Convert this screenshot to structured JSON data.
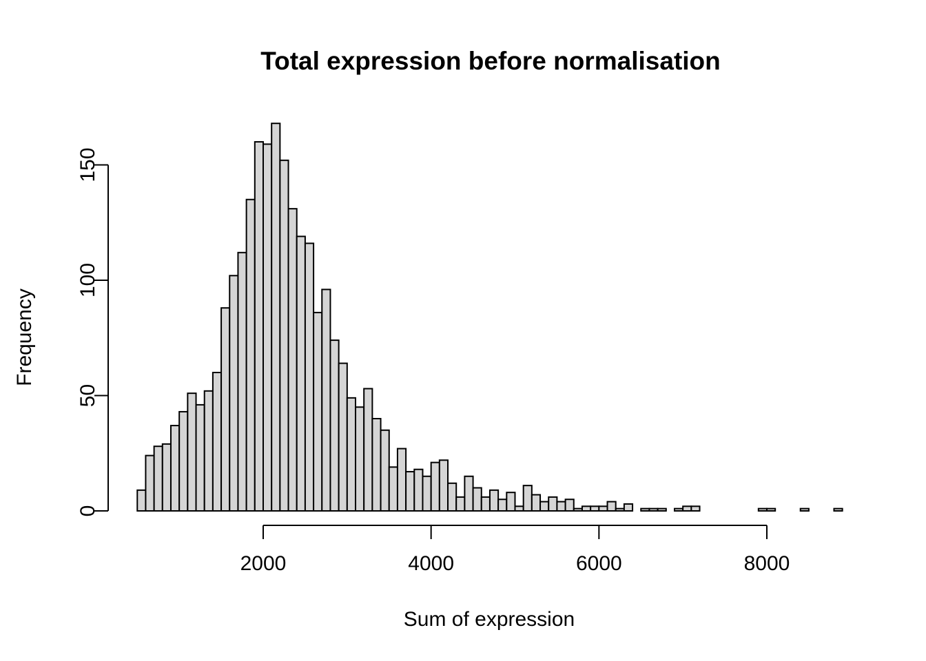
{
  "chart_data": {
    "type": "bar",
    "subtype": "histogram",
    "title": "Total expression before normalisation",
    "xlabel": "Sum of expression",
    "ylabel": "Frequency",
    "bin_width": 100,
    "first_bin_start": 500,
    "frequencies": [
      9,
      24,
      28,
      29,
      37,
      43,
      51,
      46,
      52,
      60,
      88,
      102,
      112,
      135,
      160,
      159,
      168,
      152,
      131,
      119,
      116,
      86,
      96,
      74,
      64,
      49,
      45,
      53,
      40,
      35,
      19,
      27,
      17,
      18,
      15,
      21,
      22,
      12,
      6,
      15,
      10,
      6,
      9,
      5,
      8,
      2,
      11,
      7,
      4,
      6,
      4,
      5,
      1,
      2,
      2,
      2,
      4,
      1,
      3,
      0,
      1,
      1,
      1,
      0,
      1,
      2,
      2,
      0,
      0,
      0,
      0,
      0,
      0,
      0,
      1,
      1,
      0,
      0,
      0,
      1,
      0,
      0,
      0,
      1
    ],
    "x_ticks": [
      2000,
      4000,
      6000,
      8000
    ],
    "y_ticks": [
      0,
      50,
      100,
      150
    ],
    "xlim": [
      500,
      8900
    ],
    "ylim": [
      0,
      168
    ],
    "grid": false,
    "legend": "none",
    "bar_fill": "#d5d5d5",
    "bar_stroke": "#000000",
    "axis_color": "#000000",
    "text_color": "#000000",
    "background": "#ffffff"
  }
}
